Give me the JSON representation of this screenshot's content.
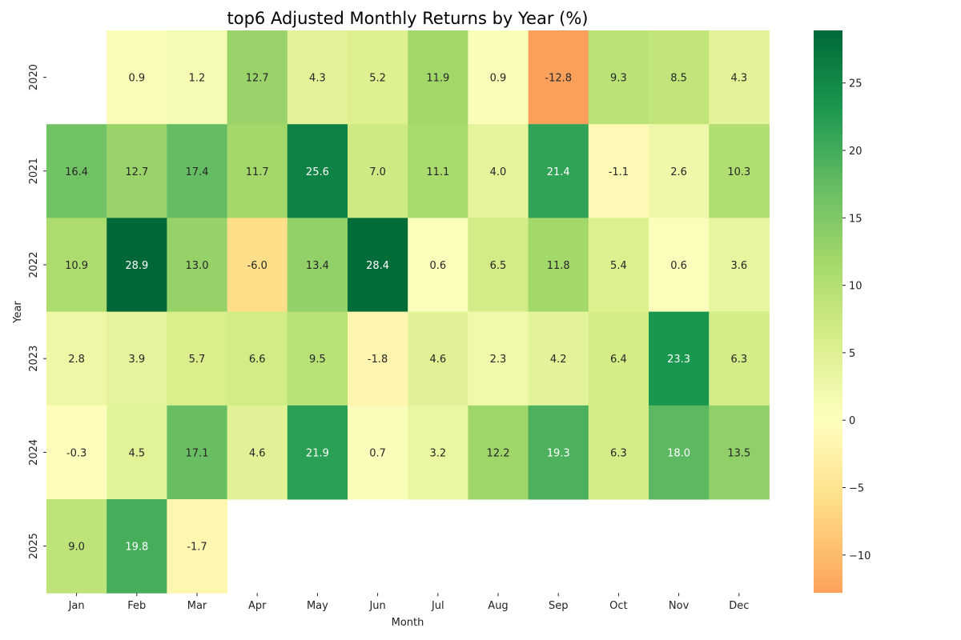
{
  "chart_data": {
    "type": "heatmap",
    "title": "top6 Adjusted Monthly Returns by Year (%)",
    "xlabel": "Month",
    "ylabel": "Year",
    "categories": [
      "Jan",
      "Feb",
      "Mar",
      "Apr",
      "May",
      "Jun",
      "Jul",
      "Aug",
      "Sep",
      "Oct",
      "Nov",
      "Dec"
    ],
    "years": [
      "2020",
      "2021",
      "2022",
      "2023",
      "2024",
      "2025"
    ],
    "values": [
      [
        null,
        0.9,
        1.2,
        12.7,
        4.3,
        5.2,
        11.9,
        0.9,
        -12.8,
        9.3,
        8.5,
        4.3
      ],
      [
        16.4,
        12.7,
        17.4,
        11.7,
        25.6,
        7.0,
        11.1,
        4.0,
        21.4,
        -1.1,
        2.6,
        10.3
      ],
      [
        10.9,
        28.9,
        13.0,
        -6.0,
        13.4,
        28.4,
        0.6,
        6.5,
        11.8,
        5.4,
        0.6,
        3.6
      ],
      [
        2.8,
        3.9,
        5.7,
        6.6,
        9.5,
        -1.8,
        4.6,
        2.3,
        4.2,
        6.4,
        23.3,
        6.3
      ],
      [
        -0.3,
        4.5,
        17.1,
        4.6,
        21.9,
        0.7,
        3.2,
        12.2,
        19.3,
        6.3,
        18.0,
        13.5
      ],
      [
        9.0,
        19.8,
        -1.7,
        null,
        null,
        null,
        null,
        null,
        null,
        null,
        null,
        null
      ]
    ],
    "colorbar": {
      "colormap": "RdYlGn",
      "center": 0,
      "range": [
        -12.8,
        28.9
      ],
      "ticks": [
        25,
        20,
        15,
        10,
        5,
        0,
        -5,
        -10
      ],
      "tick_labels": [
        "25",
        "20",
        "15",
        "10",
        "5",
        "0",
        "−5",
        "−10"
      ]
    },
    "grid": false,
    "legend": "colorbar-right"
  }
}
